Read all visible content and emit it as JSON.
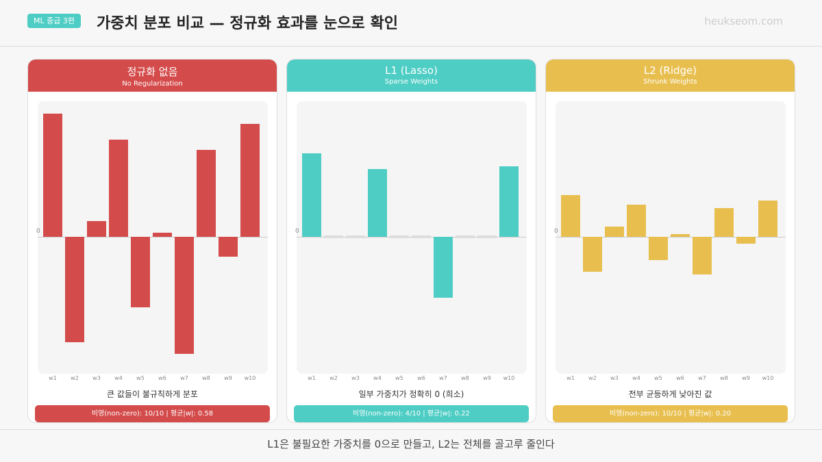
{
  "header": {
    "badge": "ML 중급 3편",
    "title": "가중치 분포 비교 — 정규화 효과를 눈으로 확인",
    "site": "heukseom.com"
  },
  "footer": "L1은 불필요한 가중치를 0으로 만들고, L2는 전체를 골고루 줄인다",
  "chart_data": [
    {
      "type": "bar",
      "title": "정규화 없음",
      "subtitle": "No Regularization",
      "color": "#d44b4b",
      "categories": [
        "w1",
        "w2",
        "w3",
        "w4",
        "w5",
        "w6",
        "w7",
        "w8",
        "w9",
        "w10"
      ],
      "values": [
        0.95,
        -0.81,
        0.12,
        0.75,
        -0.54,
        0.03,
        -0.9,
        0.67,
        -0.15,
        0.87
      ],
      "zero_label": "0",
      "caption": "큰 값들이 불규칙하게 분포",
      "stat": "비영(non-zero): 10/10  |  평균|w|: 0.58"
    },
    {
      "type": "bar",
      "title": "L1 (Lasso)",
      "subtitle": "Sparse Weights",
      "color": "#4ecdc4",
      "zero_color": "#dddddd",
      "categories": [
        "w1",
        "w2",
        "w3",
        "w4",
        "w5",
        "w6",
        "w7",
        "w8",
        "w9",
        "w10"
      ],
      "values": [
        0.64,
        0,
        0,
        0.52,
        0,
        0,
        -0.47,
        0,
        0,
        0.54
      ],
      "zero_label": "0",
      "caption": "일부 가중치가 정확히 0 (희소)",
      "stat": "비영(non-zero): 4/10  |  평균|w|: 0.22"
    },
    {
      "type": "bar",
      "title": "L2 (Ridge)",
      "subtitle": "Shrunk Weights",
      "color": "#e8bf4f",
      "categories": [
        "w1",
        "w2",
        "w3",
        "w4",
        "w5",
        "w6",
        "w7",
        "w8",
        "w9",
        "w10"
      ],
      "values": [
        0.32,
        -0.27,
        0.08,
        0.25,
        -0.18,
        0.02,
        -0.29,
        0.22,
        -0.05,
        0.28
      ],
      "zero_label": "0",
      "caption": "전부 균등하게 낮아진 값",
      "stat": "비영(non-zero): 10/10  |  평균|w|: 0.20"
    }
  ]
}
